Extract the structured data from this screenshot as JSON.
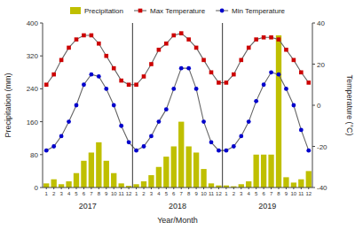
{
  "chart_data": {
    "type": "bar",
    "categories": [
      "1",
      "2",
      "3",
      "4",
      "5",
      "6",
      "7",
      "8",
      "9",
      "10",
      "11",
      "12",
      "1",
      "2",
      "3",
      "4",
      "5",
      "6",
      "7",
      "8",
      "9",
      "10",
      "11",
      "12",
      "1",
      "2",
      "3",
      "4",
      "5",
      "6",
      "7",
      "8",
      "9",
      "10",
      "11",
      "12"
    ],
    "annotations": [
      "2017",
      "2018",
      "2019"
    ],
    "xlabel": "Year/Month",
    "ylabel": "Precipitation (mm)",
    "y2label": "Temperature (°C)",
    "ylim": [
      0,
      400
    ],
    "yticks": [
      0,
      80,
      160,
      240,
      320,
      400
    ],
    "y2lim": [
      -40,
      40
    ],
    "y2ticks": [
      -40,
      -20,
      0,
      20,
      40
    ],
    "grid": false,
    "legend": "top",
    "series": [
      {
        "name": "Precipitation",
        "type": "bar",
        "color": "#BFBF00",
        "values": [
          10,
          20,
          8,
          15,
          35,
          65,
          85,
          110,
          65,
          35,
          10,
          4,
          8,
          15,
          30,
          50,
          75,
          100,
          160,
          100,
          85,
          45,
          10,
          5,
          5,
          3,
          8,
          15,
          80,
          80,
          80,
          370,
          25,
          12,
          20,
          40
        ]
      },
      {
        "name": "Max Temperature",
        "type": "line",
        "axis": "y2",
        "color": "#CC0000",
        "marker": "square",
        "values": [
          10,
          15,
          22,
          28,
          32,
          34,
          34,
          30,
          24,
          18,
          12,
          10,
          10,
          14,
          20,
          27,
          30,
          34,
          35,
          32,
          28,
          22,
          16,
          11,
          11,
          15,
          22,
          28,
          32,
          33,
          33,
          32,
          27,
          22,
          16,
          11
        ]
      },
      {
        "name": "Min Temperature",
        "type": "line",
        "axis": "y2",
        "color": "#0000CC",
        "marker": "circle",
        "values": [
          -22,
          -20,
          -15,
          -8,
          0,
          10,
          15,
          14,
          8,
          0,
          -10,
          -18,
          -22,
          -20,
          -15,
          -8,
          -2,
          8,
          18,
          18,
          8,
          -8,
          -18,
          -22,
          -22,
          -20,
          -15,
          -8,
          2,
          10,
          16,
          15,
          8,
          0,
          -12,
          -22
        ]
      }
    ]
  }
}
